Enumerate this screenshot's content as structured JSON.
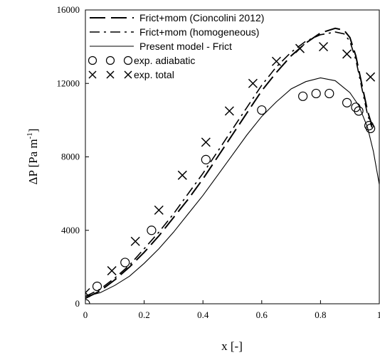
{
  "chart_data": {
    "type": "line",
    "title": "",
    "xlabel": "x [-]",
    "ylabel": "ΔP [Pa m-1]",
    "ylabel_main": "ΔP [Pa m",
    "ylabel_sup": "-1",
    "ylabel_close": "]",
    "xlim": [
      0,
      1
    ],
    "ylim": [
      0,
      16000
    ],
    "xticks": [
      0,
      0.2,
      0.4,
      0.6,
      0.8,
      1
    ],
    "xtick_labels": [
      "0",
      "0.2",
      "0.4",
      "0.6",
      "0.8",
      "1"
    ],
    "yticks": [
      0,
      4000,
      8000,
      12000,
      16000
    ],
    "ytick_labels": [
      "0",
      "4000",
      "8000",
      "12000",
      "16000"
    ],
    "grid": false,
    "legend_position": "top-left",
    "series": [
      {
        "name": "Frict+mom (Cioncolini 2012)",
        "style": "long-dash",
        "x": [
          0,
          0.05,
          0.1,
          0.15,
          0.2,
          0.25,
          0.3,
          0.35,
          0.4,
          0.45,
          0.5,
          0.55,
          0.6,
          0.65,
          0.7,
          0.75,
          0.8,
          0.85,
          0.88,
          0.9,
          0.92,
          0.94,
          0.96,
          0.975
        ],
        "y": [
          300,
          700,
          1300,
          2000,
          2800,
          3700,
          4700,
          5700,
          6800,
          8000,
          9200,
          10400,
          11600,
          12600,
          13500,
          14200,
          14750,
          15000,
          14900,
          14500,
          13500,
          12000,
          10500,
          9700
        ]
      },
      {
        "name": "Frict+mom (homogeneous)",
        "style": "dash-dot",
        "x": [
          0,
          0.05,
          0.1,
          0.15,
          0.2,
          0.25,
          0.3,
          0.35,
          0.4,
          0.45,
          0.5,
          0.55,
          0.6,
          0.65,
          0.7,
          0.75,
          0.8,
          0.85,
          0.88,
          0.9,
          0.92,
          0.94,
          0.96,
          0.975
        ],
        "y": [
          400,
          800,
          1400,
          2100,
          3000,
          3900,
          4900,
          6000,
          7100,
          8300,
          9500,
          10700,
          11900,
          12900,
          13700,
          14300,
          14650,
          14800,
          14700,
          14300,
          13300,
          11800,
          10300,
          9600
        ]
      },
      {
        "name": "Present model - Frict",
        "style": "solid",
        "x": [
          0,
          0.05,
          0.1,
          0.15,
          0.2,
          0.25,
          0.3,
          0.35,
          0.4,
          0.45,
          0.5,
          0.55,
          0.6,
          0.65,
          0.7,
          0.75,
          0.8,
          0.85,
          0.9,
          0.93,
          0.96,
          0.98,
          1.0
        ],
        "y": [
          400,
          600,
          1000,
          1500,
          2200,
          3000,
          3900,
          4900,
          5900,
          7000,
          8100,
          9200,
          10200,
          11000,
          11700,
          12100,
          12300,
          12150,
          11500,
          10800,
          9600,
          8300,
          6500
        ]
      },
      {
        "name": "exp. adiabatic",
        "style": "marker-circle",
        "x": [
          0,
          0.04,
          0.135,
          0.225,
          0.41,
          0.6,
          0.74,
          0.785,
          0.83,
          0.89,
          0.92,
          0.93,
          0.965,
          0.97
        ],
        "y": [
          0,
          950,
          2250,
          4000,
          7850,
          10550,
          11300,
          11450,
          11450,
          10950,
          10700,
          10500,
          9700,
          9550
        ]
      },
      {
        "name": "exp. total",
        "style": "marker-x",
        "x": [
          0,
          0.09,
          0.17,
          0.25,
          0.33,
          0.41,
          0.49,
          0.57,
          0.65,
          0.73,
          0.81,
          0.89,
          0.97
        ],
        "y": [
          600,
          1800,
          3400,
          5100,
          7000,
          8800,
          10500,
          12000,
          13200,
          13900,
          14000,
          13600,
          12350
        ]
      }
    ]
  }
}
